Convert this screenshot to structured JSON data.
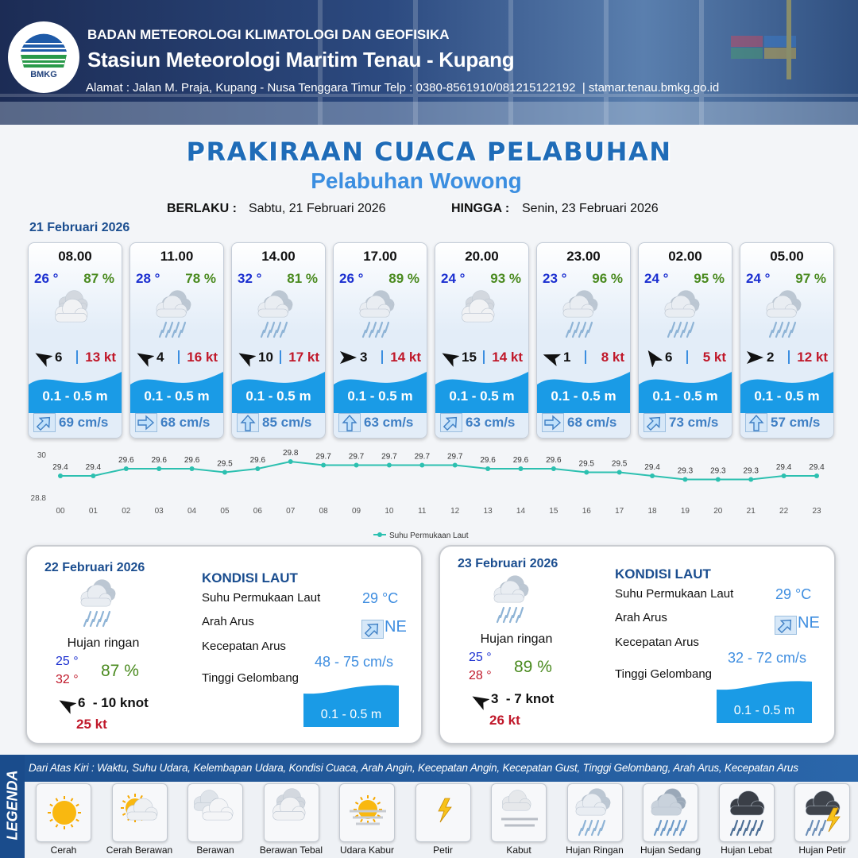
{
  "header": {
    "agency": "BADAN METEOROLOGI KLIMATOLOGI DAN GEOFISIKA",
    "station": "Stasiun Meteorologi Maritim Tenau - Kupang",
    "address": "Alamat : Jalan M. Praja, Kupang - Nusa Tenggara Timur Telp : 0380-8561910/081215122192  | stamar.tenau.bmkg.go.id",
    "logo": "BMKG"
  },
  "title": "PRAKIRAAN CUACA PELABUHAN",
  "port": "Pelabuhan Wowong",
  "validity": {
    "from_label": "BERLAKU :",
    "from": "Sabtu, 21 Februari 2026",
    "to_label": "HINGGA :",
    "to": "Senin, 23 Februari 2026"
  },
  "day1": {
    "date": "21 Februari 2026",
    "cards": [
      {
        "time": "08.00",
        "temperature": "26 °",
        "humidity": "87 %",
        "wind_speed": 6,
        "gust": "13 kt",
        "wave": "0.1 - 0.5 m",
        "current": "69 cm/s"
      },
      {
        "time": "11.00",
        "temperature": "28 °",
        "humidity": "78 %",
        "wind_speed": 4,
        "gust": "16 kt",
        "wave": "0.1 - 0.5 m",
        "current": "68 cm/s"
      },
      {
        "time": "14.00",
        "temperature": "32 °",
        "humidity": "81 %",
        "wind_speed": 10,
        "gust": "17 kt",
        "wave": "0.1 - 0.5 m",
        "current": "85 cm/s"
      },
      {
        "time": "17.00",
        "temperature": "26 °",
        "humidity": "89 %",
        "wind_speed": 3,
        "gust": "14 kt",
        "wave": "0.1 - 0.5 m",
        "current": "63 cm/s"
      },
      {
        "time": "20.00",
        "temperature": "24 °",
        "humidity": "93 %",
        "wind_speed": 15,
        "gust": "14 kt",
        "wave": "0.1 - 0.5 m",
        "current": "63 cm/s"
      },
      {
        "time": "23.00",
        "temperature": "23 °",
        "humidity": "96 %",
        "wind_speed": 1,
        "gust": "8 kt",
        "wave": "0.1 - 0.5 m",
        "current": "68 cm/s"
      },
      {
        "time": "02.00",
        "temperature": "24 °",
        "humidity": "95 %",
        "wind_speed": 6,
        "gust": "5 kt",
        "wave": "0.1 - 0.5 m",
        "current": "73 cm/s"
      },
      {
        "time": "05.00",
        "temperature": "24 °",
        "humidity": "97 %",
        "wind_speed": 2,
        "gust": "12 kt",
        "wave": "0.1 - 0.5 m",
        "current": "57 cm/s"
      }
    ]
  },
  "chart_data": {
    "type": "line",
    "categories": [
      "00",
      "01",
      "02",
      "03",
      "04",
      "05",
      "06",
      "07",
      "08",
      "09",
      "10",
      "11",
      "12",
      "13",
      "14",
      "15",
      "16",
      "17",
      "18",
      "19",
      "20",
      "21",
      "22",
      "23"
    ],
    "series": [
      {
        "name": "Suhu Permukaan Laut",
        "color": "#2cc0b0",
        "values": [
          29.4,
          29.4,
          29.6,
          29.6,
          29.6,
          29.5,
          29.6,
          29.8,
          29.7,
          29.7,
          29.7,
          29.7,
          29.7,
          29.6,
          29.6,
          29.6,
          29.5,
          29.5,
          29.4,
          29.3,
          29.3,
          29.3,
          29.4,
          29.4
        ]
      }
    ],
    "ylim": [
      28.8,
      30
    ],
    "yticks": [
      28.8,
      30
    ]
  },
  "days": [
    {
      "date": "22 Februari 2026",
      "condition": "Hujan ringan",
      "temp_min": "25 °",
      "temp_max": "32 °",
      "humidity": "87 %",
      "wind": "6  - 10 knot",
      "gust": "25 kt",
      "sea_title": "KONDISI LAUT",
      "sst_label": "Suhu Permukaan Laut",
      "sst": "29 °C",
      "current_dir_label": "Arah Arus",
      "current_dir": "NE",
      "current_speed_label": "Kecepatan Arus",
      "current_speed": "48 - 75 cm/s",
      "wave_label": "Tinggi Gelombang",
      "wave": "0.1 - 0.5 m"
    },
    {
      "date": "23 Februari 2026",
      "condition": "Hujan ringan",
      "temp_min": "25 °",
      "temp_max": "28 °",
      "humidity": "89 %",
      "wind": "3  - 7 knot",
      "gust": "26 kt",
      "sea_title": "KONDISI LAUT",
      "sst_label": "Suhu Permukaan Laut",
      "sst": "29 °C",
      "current_dir_label": "Arah Arus",
      "current_dir": "NE",
      "current_speed_label": "Kecepatan Arus",
      "current_speed": "32 - 72 cm/s",
      "wave_label": "Tinggi Gelombang",
      "wave": "0.1 - 0.5 m"
    }
  ],
  "legend": {
    "title": "LEGENDA",
    "description": "Dari Atas Kiri : Waktu, Suhu Udara, Kelembapan Udara, Kondisi Cuaca, Arah Angin, Kecepatan Angin, Kecepatan Gust, Tinggi Gelombang, Arah Arus, Kecepatan Arus",
    "items": [
      "Cerah",
      "Cerah Berawan",
      "Berawan",
      "Berawan Tebal",
      "Udara Kabur",
      "Petir",
      "Kabut",
      "Hujan Ringan",
      "Hujan Sedang",
      "Hujan Lebat",
      "Hujan Petir"
    ]
  }
}
